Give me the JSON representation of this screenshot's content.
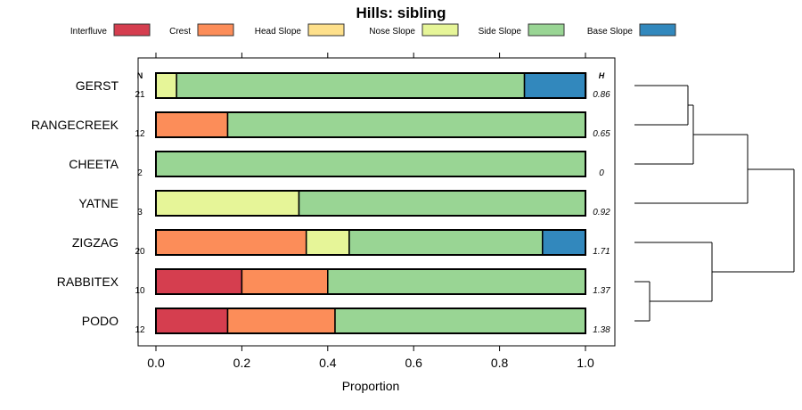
{
  "chart_data": {
    "type": "bar",
    "stacked": true,
    "orientation": "horizontal",
    "title": "Hills: sibling",
    "xlabel": "Proportion",
    "ylabel": "",
    "xlim": [
      0,
      1
    ],
    "x_ticks": [
      "0.0",
      "0.2",
      "0.4",
      "0.6",
      "0.8",
      "1.0"
    ],
    "x_tick_values": [
      0,
      0.2,
      0.4,
      0.6,
      0.8,
      1.0
    ],
    "legend_position": "top",
    "n_header": "N",
    "h_header": "H",
    "series": [
      {
        "name": "Interfluve",
        "color": "#D53E4F"
      },
      {
        "name": "Crest",
        "color": "#FC8D59"
      },
      {
        "name": "Head Slope",
        "color": "#FEE08B"
      },
      {
        "name": "Nose Slope",
        "color": "#E6F598"
      },
      {
        "name": "Side Slope",
        "color": "#99D594"
      },
      {
        "name": "Base Slope",
        "color": "#3288BD"
      }
    ],
    "categories": [
      "GERST",
      "RANGECREEK",
      "CHEETA",
      "YATNE",
      "ZIGZAG",
      "RABBITEX",
      "PODO"
    ],
    "N": [
      "21",
      "12",
      "2",
      "3",
      "20",
      "10",
      "12"
    ],
    "H": [
      "0.86",
      "0.65",
      "0",
      "0.92",
      "1.71",
      "1.37",
      "1.38"
    ],
    "values": [
      [
        0,
        0,
        0,
        0.048,
        0.81,
        0.143
      ],
      [
        0,
        0.167,
        0,
        0,
        0.833,
        0
      ],
      [
        0,
        0,
        0,
        0,
        1.0,
        0
      ],
      [
        0,
        0,
        0,
        0.333,
        0.667,
        0
      ],
      [
        0,
        0.35,
        0,
        0.1,
        0.45,
        0.1
      ],
      [
        0.2,
        0.2,
        0,
        0,
        0.6,
        0
      ],
      [
        0.167,
        0.25,
        0,
        0,
        0.583,
        0
      ]
    ]
  }
}
